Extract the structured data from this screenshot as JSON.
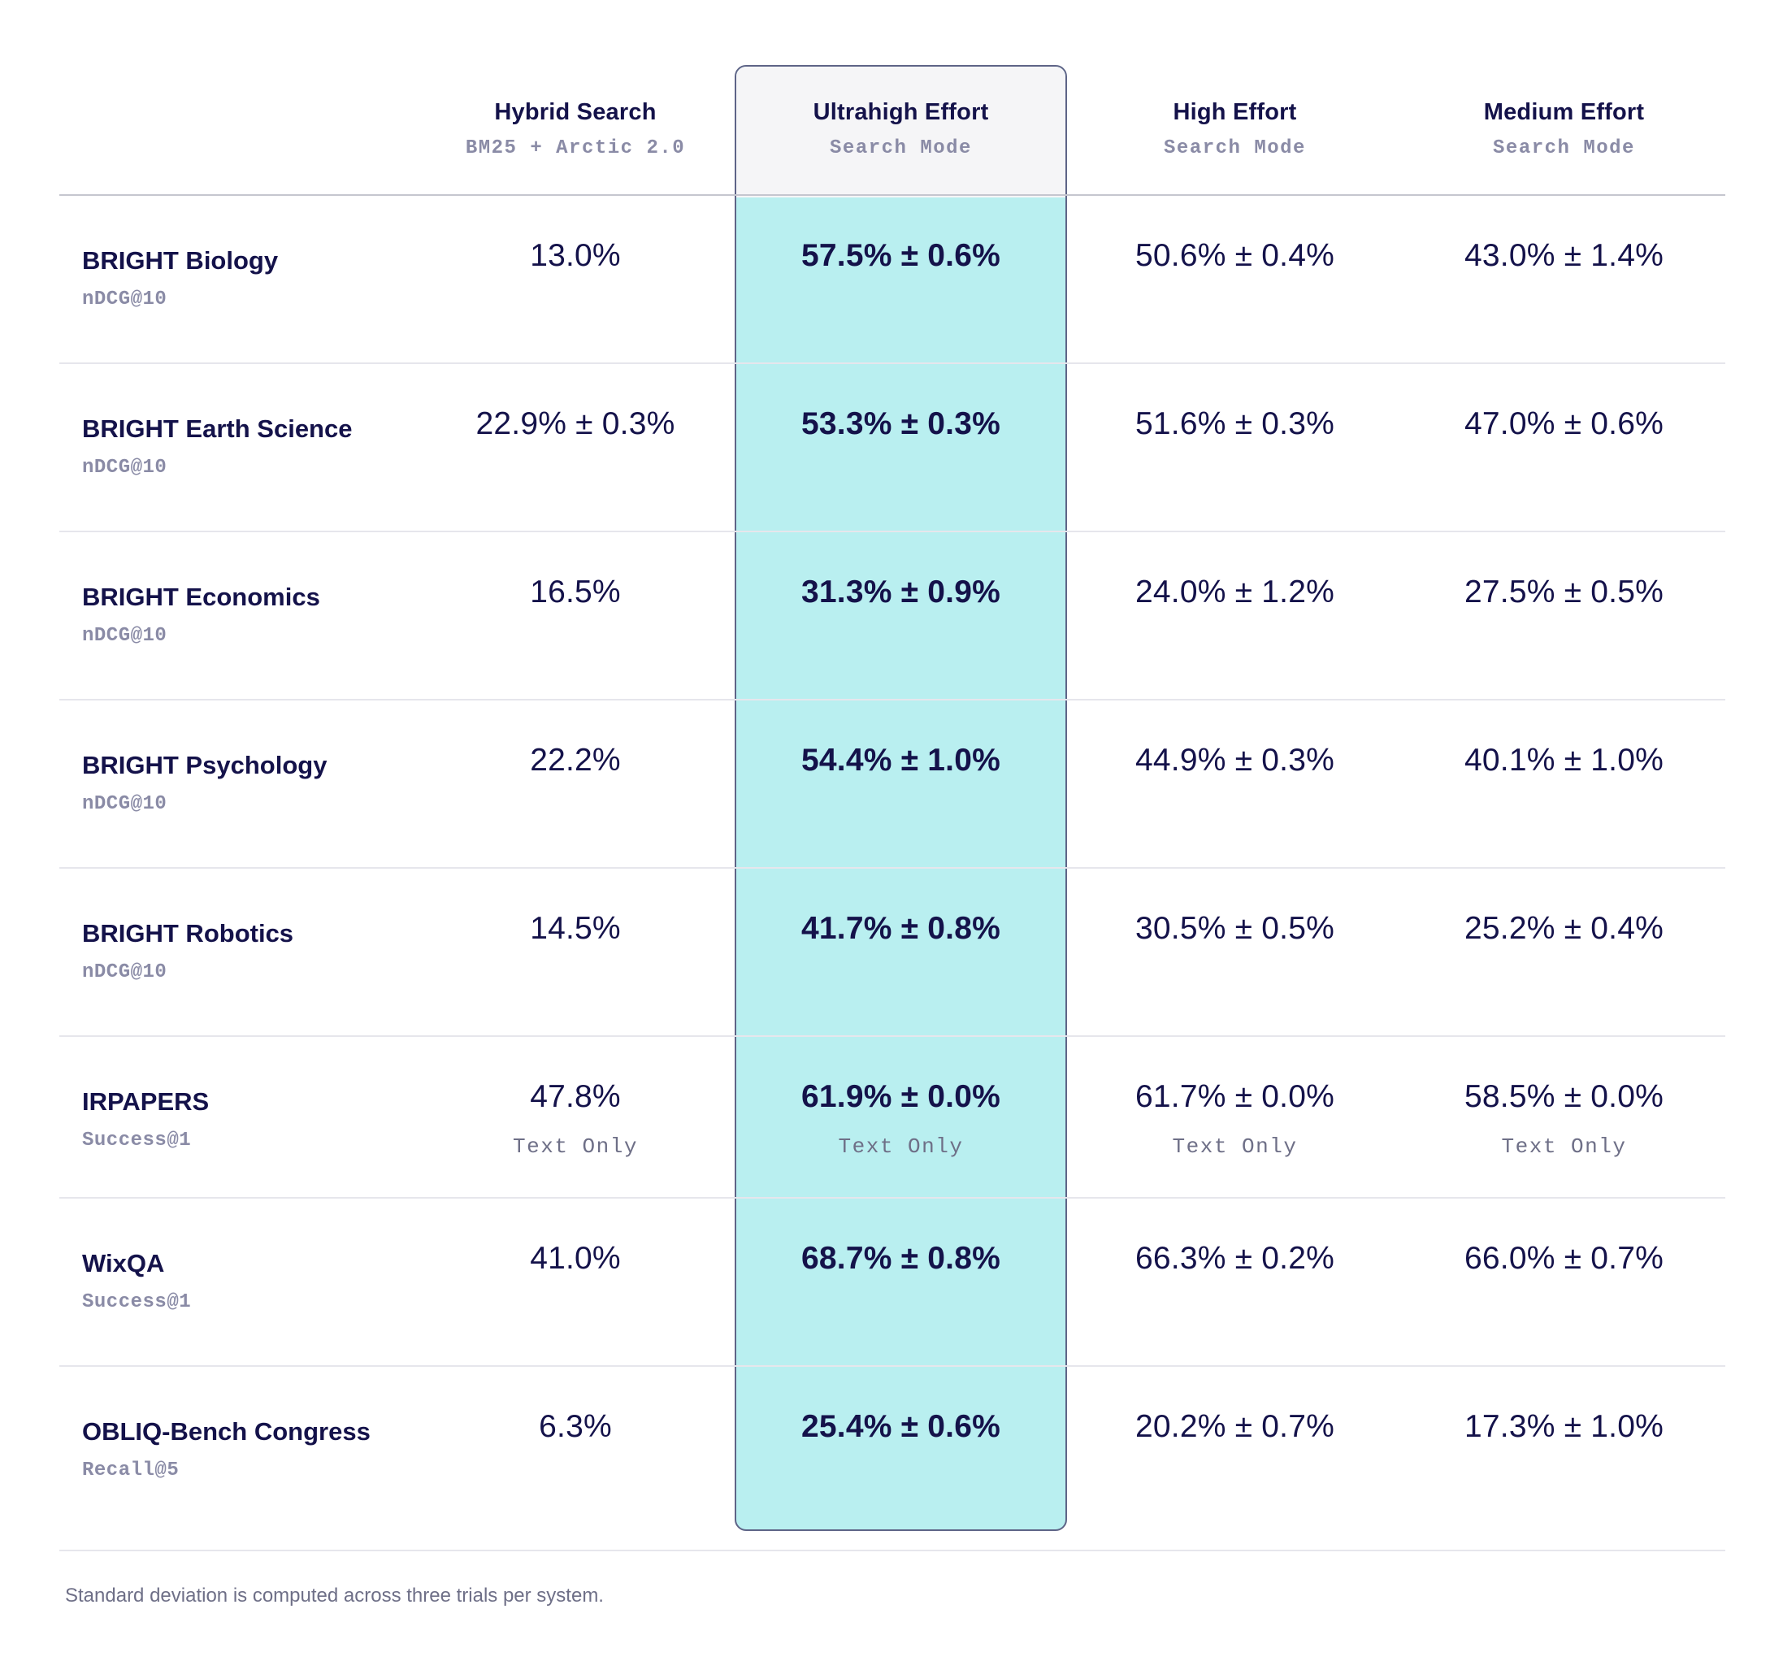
{
  "columns": [
    {
      "title": "Hybrid Search",
      "subtitle": "BM25 + Arctic 2.0"
    },
    {
      "title": "Ultrahigh Effort",
      "subtitle": "Search Mode"
    },
    {
      "title": "High Effort",
      "subtitle": "Search Mode"
    },
    {
      "title": "Medium Effort",
      "subtitle": "Search Mode"
    }
  ],
  "highlighted_column": "Ultrahigh Effort",
  "colors": {
    "highlight": "#b9eff0",
    "highlight_border": "#5e6487",
    "text": "#14124a",
    "muted": "#8a8ba6"
  },
  "rows": [
    {
      "name": "BRIGHT Biology",
      "metric": "nDCG@10",
      "values": [
        "13.0%",
        "57.5% ± 0.6%",
        "50.6% ± 0.4%",
        "43.0% ± 1.4%"
      ],
      "notes": [
        "",
        "",
        "",
        ""
      ]
    },
    {
      "name": "BRIGHT Earth Science",
      "metric": "nDCG@10",
      "values": [
        "22.9% ± 0.3%",
        "53.3% ± 0.3%",
        "51.6% ± 0.3%",
        "47.0% ± 0.6%"
      ],
      "notes": [
        "",
        "",
        "",
        ""
      ]
    },
    {
      "name": "BRIGHT Economics",
      "metric": "nDCG@10",
      "values": [
        "16.5%",
        "31.3% ± 0.9%",
        "24.0% ± 1.2%",
        "27.5% ± 0.5%"
      ],
      "notes": [
        "",
        "",
        "",
        ""
      ]
    },
    {
      "name": "BRIGHT Psychology",
      "metric": "nDCG@10",
      "values": [
        "22.2%",
        "54.4% ± 1.0%",
        "44.9% ± 0.3%",
        "40.1% ± 1.0%"
      ],
      "notes": [
        "",
        "",
        "",
        ""
      ]
    },
    {
      "name": "BRIGHT Robotics",
      "metric": "nDCG@10",
      "values": [
        "14.5%",
        "41.7% ± 0.8%",
        "30.5% ± 0.5%",
        "25.2% ± 0.4%"
      ],
      "notes": [
        "",
        "",
        "",
        ""
      ]
    },
    {
      "name": "IRPAPERS",
      "metric": "Success@1",
      "values": [
        "47.8%",
        "61.9% ± 0.0%",
        "61.7% ± 0.0%",
        "58.5% ± 0.0%"
      ],
      "notes": [
        "Text Only",
        "Text Only",
        "Text Only",
        "Text Only"
      ]
    },
    {
      "name": "WixQA",
      "metric": "Success@1",
      "values": [
        "41.0%",
        "68.7% ± 0.8%",
        "66.3% ± 0.2%",
        "66.0% ± 0.7%"
      ],
      "notes": [
        "",
        "",
        "",
        ""
      ]
    },
    {
      "name": "OBLIQ-Bench Congress",
      "metric": "Recall@5",
      "values": [
        "6.3%",
        "25.4% ± 0.6%",
        "20.2% ± 0.7%",
        "17.3% ± 1.0%"
      ],
      "notes": [
        "",
        "",
        "",
        ""
      ]
    }
  ],
  "footnote": "Standard deviation is computed across three trials per system."
}
